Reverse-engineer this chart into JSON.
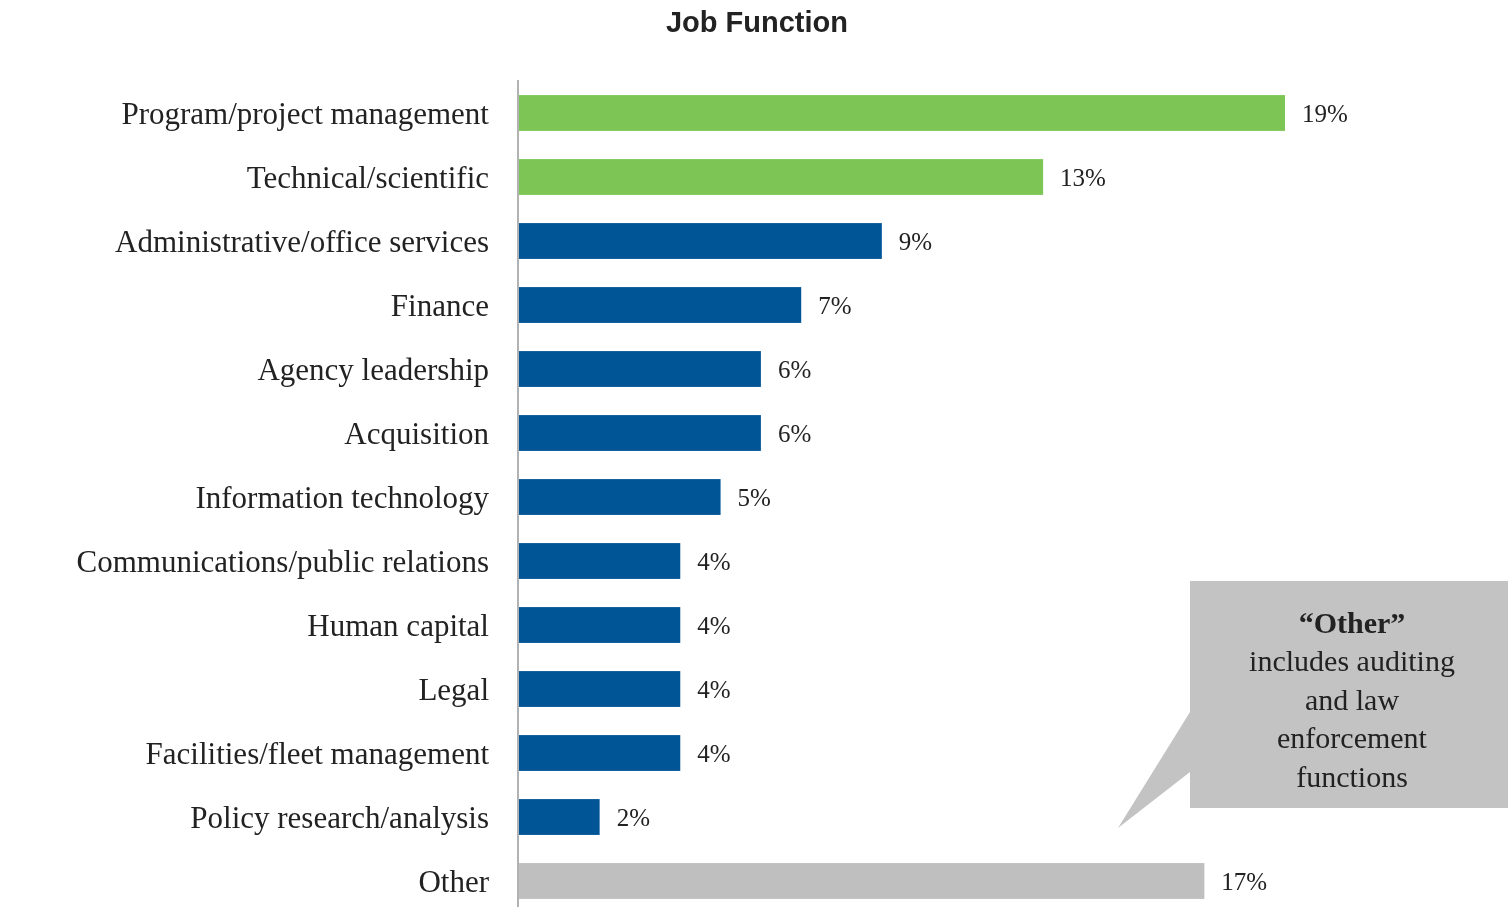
{
  "chart_data": {
    "type": "bar",
    "orientation": "horizontal",
    "title": "Job Function",
    "categories": [
      "Program/project management",
      "Technical/scientific",
      "Administrative/office services",
      "Finance",
      "Agency leadership",
      "Acquisition",
      "Information technology",
      "Communications/public relations",
      "Human capital",
      "Legal",
      "Facilities/fleet management",
      "Policy research/analysis",
      "Other"
    ],
    "values": [
      19,
      13,
      9,
      7,
      6,
      6,
      5,
      4,
      4,
      4,
      4,
      2,
      17
    ],
    "value_labels": [
      "19%",
      "13%",
      "9%",
      "7%",
      "6%",
      "6%",
      "5%",
      "4%",
      "4%",
      "4%",
      "4%",
      "2%",
      "17%"
    ],
    "colors": [
      "#7dc656",
      "#7dc656",
      "#005596",
      "#005596",
      "#005596",
      "#005596",
      "#005596",
      "#005596",
      "#005596",
      "#005596",
      "#005596",
      "#005596",
      "#bfbfbf"
    ],
    "tick_labels": "y",
    "annotations": [
      "“Other”\nincludes auditing\nand law\nenforcement\nfunctions"
    ]
  }
}
